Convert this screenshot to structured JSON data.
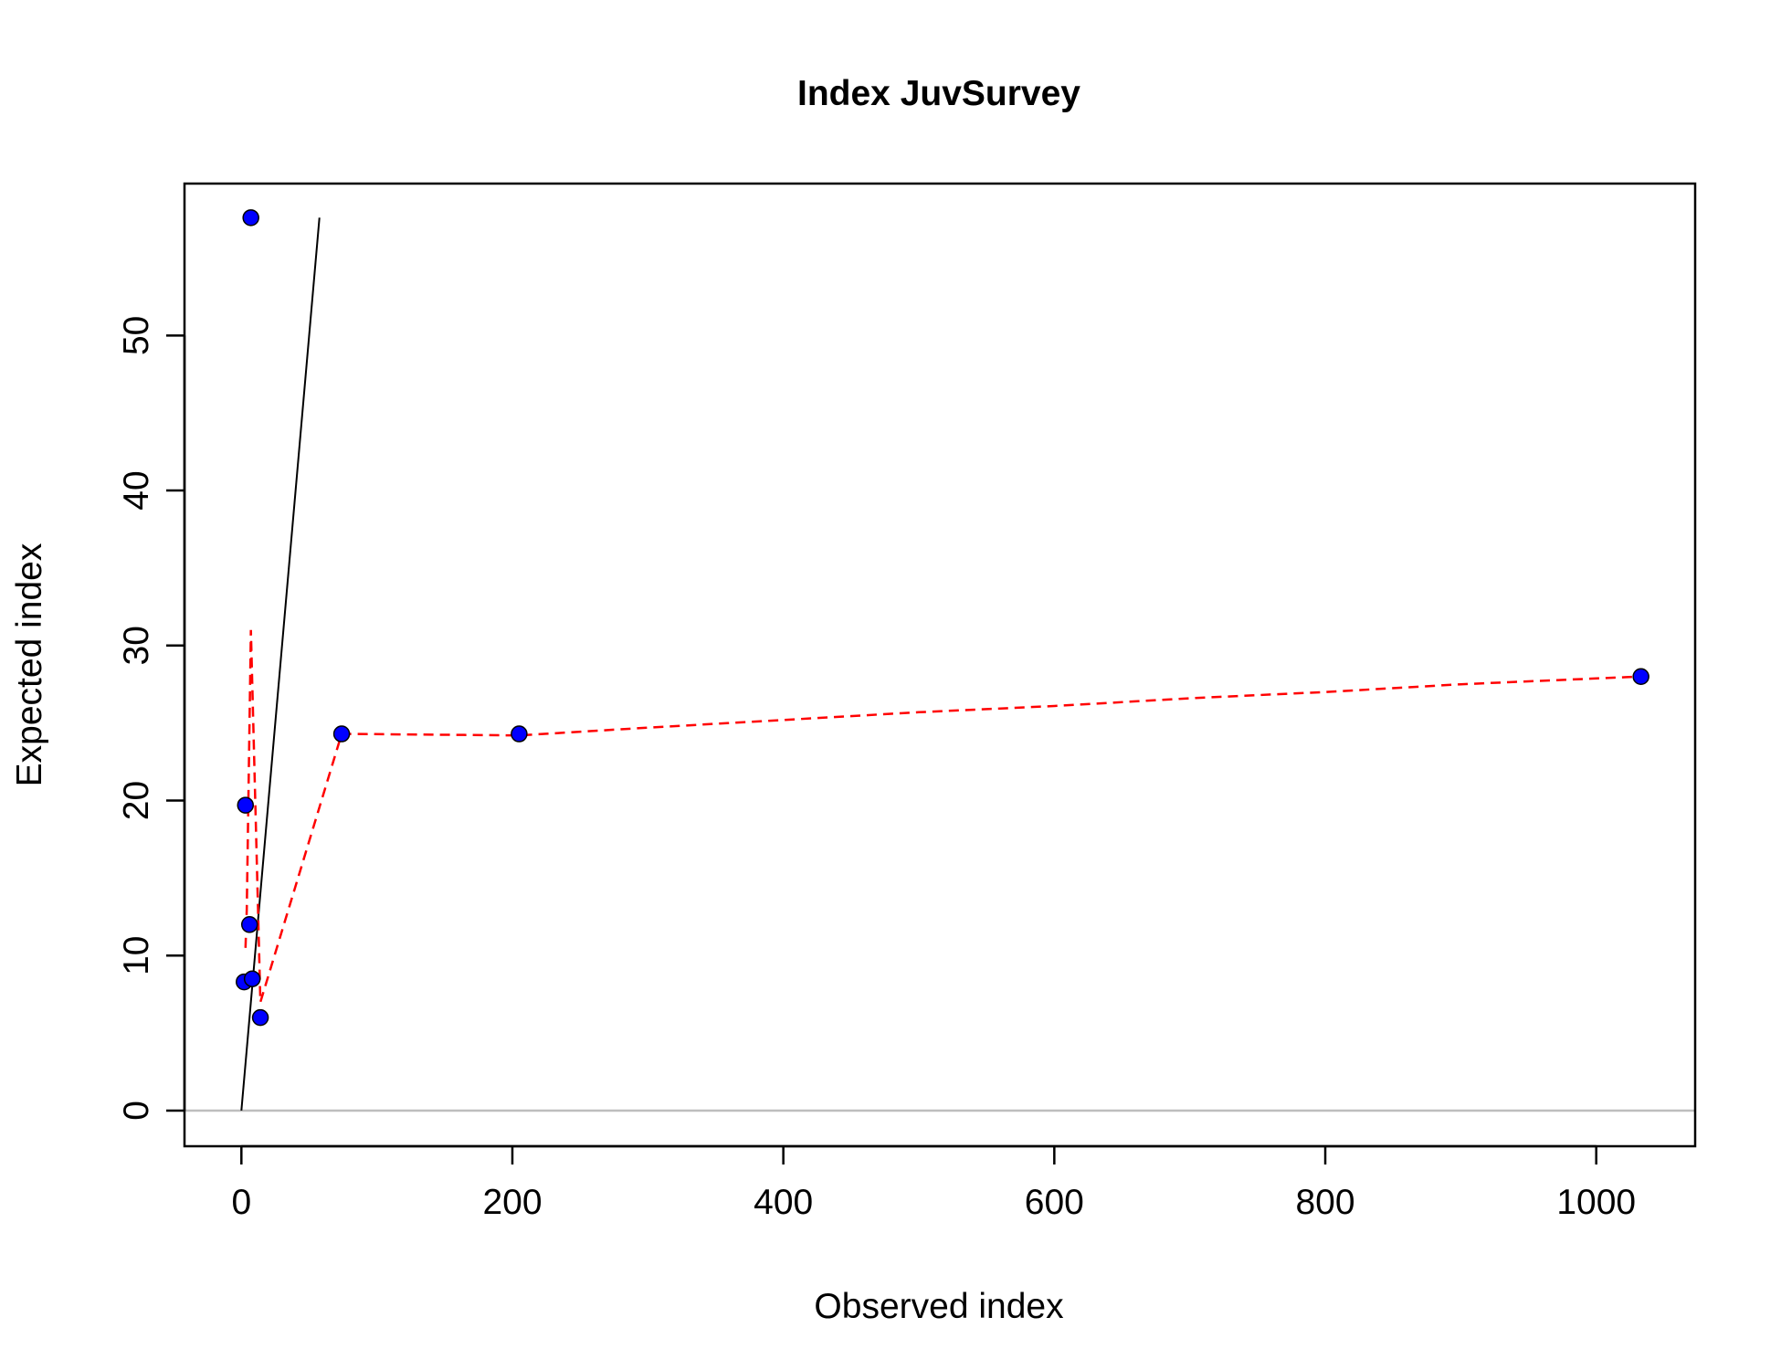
{
  "chart_data": {
    "type": "scatter",
    "title": "Index JuvSurvey",
    "xlabel": "Observed index",
    "ylabel": "Expected index",
    "xlim": [
      -42,
      1073
    ],
    "ylim": [
      -2.3,
      59.8
    ],
    "x_ticks": [
      0,
      200,
      400,
      600,
      800,
      1000
    ],
    "y_ticks": [
      0,
      10,
      20,
      30,
      40,
      50
    ],
    "grid": false,
    "legend": "none",
    "points": [
      {
        "x": 7,
        "y": 57.6
      },
      {
        "x": 3,
        "y": 19.7
      },
      {
        "x": 6,
        "y": 12.0
      },
      {
        "x": 2,
        "y": 8.3
      },
      {
        "x": 8,
        "y": 8.5
      },
      {
        "x": 14,
        "y": 6.0
      },
      {
        "x": 74,
        "y": 24.3
      },
      {
        "x": 205,
        "y": 24.3
      },
      {
        "x": 1033,
        "y": 28.0
      }
    ],
    "identity_line": {
      "x": [
        0,
        57.6
      ],
      "y": [
        0,
        57.6
      ]
    },
    "smoother": {
      "x": [
        3,
        4,
        7,
        14,
        74,
        205,
        300,
        400,
        500,
        600,
        700,
        800,
        900,
        1033
      ],
      "y": [
        10.5,
        13.0,
        31.0,
        7.0,
        24.3,
        24.2,
        24.7,
        25.2,
        25.7,
        26.1,
        26.6,
        27.0,
        27.5,
        28.0
      ]
    },
    "zero_line_y": 0,
    "colors": {
      "points_fill": "#0000ff",
      "points_stroke": "#000000",
      "identity_line": "#000000",
      "smoother": "#ff0000",
      "zero_line": "#bebebe"
    }
  }
}
